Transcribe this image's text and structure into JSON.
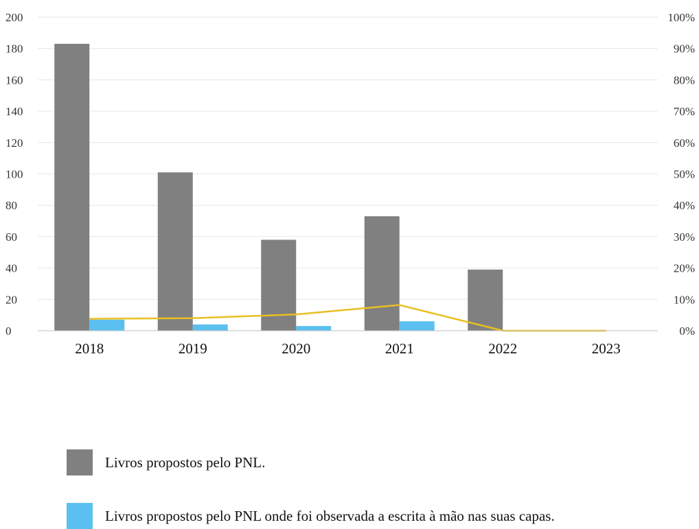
{
  "chart_data": {
    "type": "bar",
    "categories": [
      "2018",
      "2019",
      "2020",
      "2021",
      "2022",
      "2023"
    ],
    "series": [
      {
        "name": "Livros propostos pelo PNL.",
        "type": "bar",
        "axis": "left",
        "values": [
          183,
          101,
          58,
          73,
          39,
          0
        ],
        "color": "#808080"
      },
      {
        "name": "Livros propostos pelo PNL onde foi observada a escrita à mão nas suas capas.",
        "type": "bar",
        "axis": "left",
        "values": [
          7,
          4,
          3,
          6,
          0,
          0
        ],
        "color": "#5bc0f0"
      },
      {
        "type": "line",
        "axis": "right",
        "values": [
          0.038,
          0.04,
          0.052,
          0.082,
          0.0,
          0.0
        ],
        "color": "#e8c020"
      }
    ],
    "left_axis": {
      "ylim": [
        0,
        200
      ],
      "ticks": [
        "0",
        "20",
        "40",
        "60",
        "80",
        "100",
        "120",
        "140",
        "160",
        "180",
        "200"
      ]
    },
    "right_axis": {
      "ylim": [
        0,
        1
      ],
      "ticks": [
        "0%",
        "10%",
        "20%",
        "30%",
        "40%",
        "50%",
        "60%",
        "70%",
        "80%",
        "90%",
        "100%"
      ]
    },
    "grid": true,
    "legend_position": "bottom-left"
  },
  "legend": {
    "items": [
      {
        "label": "Livros propostos pelo PNL.",
        "color": "#808080"
      },
      {
        "label": "Livros propostos pelo PNL onde foi observada a escrita à mão nas suas capas.",
        "color": "#5bc0f0"
      }
    ]
  }
}
